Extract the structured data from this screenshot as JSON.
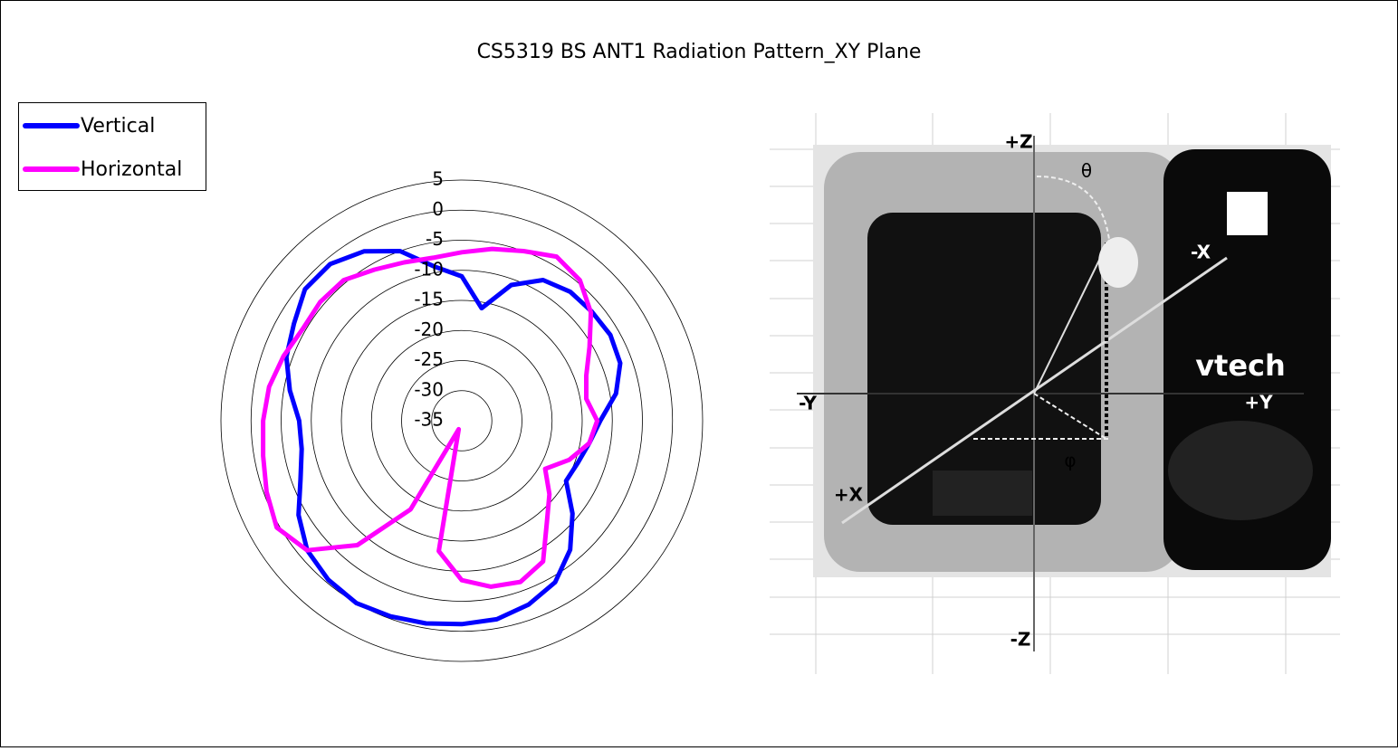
{
  "chart_data": {
    "type": "radar",
    "title": "CS5319 BS ANT1 Radiation Pattern_XY Plane",
    "rlim": [
      -35,
      5
    ],
    "rticks": [
      -35,
      -30,
      -25,
      -20,
      -15,
      -10,
      -5,
      0,
      5
    ],
    "grid": true,
    "legend": "top-left",
    "series": [
      {
        "name": "Vertical",
        "color": "#0000ff",
        "values": [
          -11,
          -16,
          -11,
          -8,
          -7,
          -6.8,
          -6.5,
          -7,
          -9,
          -12,
          -13.5,
          -14.5,
          -15,
          -11,
          -7,
          -4,
          -2.5,
          -1.5,
          -1.2,
          -0.8,
          -0.4,
          0,
          -0.5,
          -1.5,
          -3.7,
          -6.5,
          -8,
          -8,
          -6,
          -4,
          -2.8,
          -1,
          -1,
          -2.5,
          -5,
          -9
        ]
      },
      {
        "name": "Horizontal",
        "color": "#ff00ff",
        "values": [
          -7,
          -6,
          -5,
          -3.5,
          -4.5,
          -7,
          -10.5,
          -13,
          -14,
          -12.5,
          -13.5,
          -16,
          -19,
          -16,
          -13,
          -8,
          -6.5,
          -7,
          -8.5,
          -13,
          -33.5,
          -18,
          -8,
          -1.5,
          0.5,
          -0.5,
          -1.5,
          -2,
          -2.5,
          -3.5,
          -4.5,
          -4.3,
          -4.5,
          -6,
          -7,
          -7.5
        ]
      }
    ],
    "photo_labels": {
      "plus_z": "+Z",
      "minus_z": "-Z",
      "minus_y": "-Y",
      "plus_y": "+Y",
      "plus_x": "+X",
      "minus_x": "-X",
      "theta": "θ",
      "phi": "φ",
      "brand": "vtech"
    }
  }
}
